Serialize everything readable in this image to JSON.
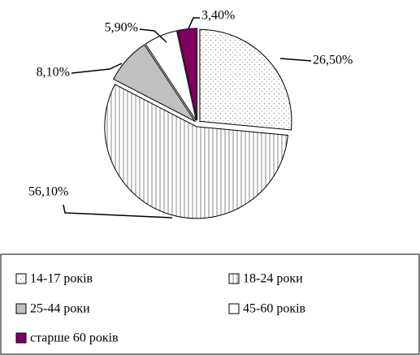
{
  "chart_data": {
    "type": "pie",
    "categories": [
      "14-17 років",
      "18-24 роки",
      "25-44 роки",
      "45-60 років",
      "старше 60 років"
    ],
    "values": [
      26.5,
      56.1,
      8.1,
      5.9,
      3.4
    ],
    "value_labels": [
      "26,50%",
      "56,10%",
      "8,10%",
      "5,90%",
      "3,40%"
    ],
    "colors": [
      "#ffffff",
      "#ffffff",
      "#c0c0c0",
      "#ffffff",
      "#800060"
    ],
    "legend": "bottom"
  }
}
